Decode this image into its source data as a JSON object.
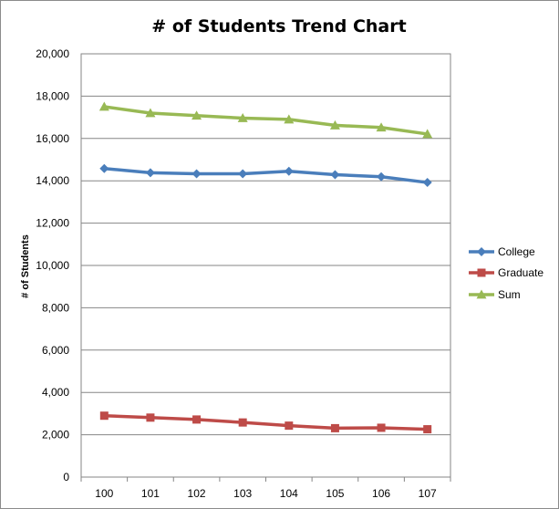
{
  "chart_data": {
    "type": "line",
    "title": "# of Students Trend Chart",
    "xlabel": "",
    "ylabel": "# of Students",
    "categories": [
      "100",
      "101",
      "102",
      "103",
      "104",
      "105",
      "106",
      "107"
    ],
    "ylim": [
      0,
      20000
    ],
    "yticks": [
      0,
      2000,
      4000,
      6000,
      8000,
      10000,
      12000,
      14000,
      16000,
      18000,
      20000
    ],
    "ytick_labels": [
      "0",
      "2,000",
      "4,000",
      "6,000",
      "8,000",
      "10,000",
      "12,000",
      "14,000",
      "16,000",
      "18,000",
      "20,000"
    ],
    "grid": true,
    "legend": "right",
    "series": [
      {
        "name": "College",
        "marker": "diamond",
        "color": "#4a7ebb",
        "values": [
          14580,
          14380,
          14330,
          14330,
          14450,
          14290,
          14190,
          13920
        ]
      },
      {
        "name": "Graduate",
        "marker": "square",
        "color": "#be4b48",
        "values": [
          2900,
          2810,
          2720,
          2580,
          2430,
          2310,
          2330,
          2260
        ]
      },
      {
        "name": "Sum",
        "marker": "triangle",
        "color": "#98b954",
        "values": [
          17500,
          17200,
          17080,
          16960,
          16900,
          16620,
          16520,
          16210
        ]
      }
    ]
  }
}
